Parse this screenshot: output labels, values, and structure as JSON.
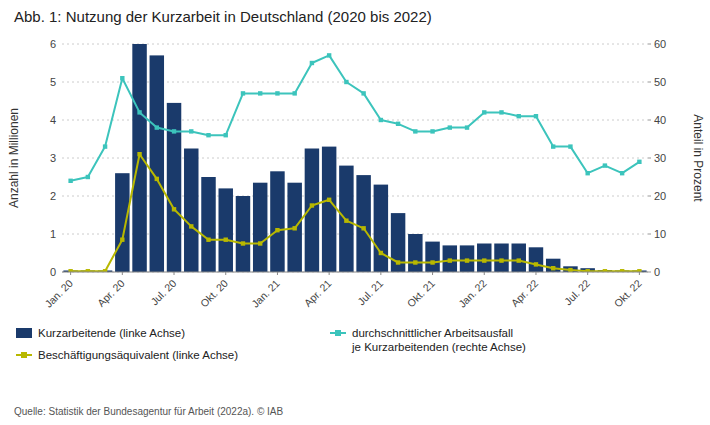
{
  "chart_data": {
    "type": "bar",
    "title": "Abb. 1: Nutzung der Kurzarbeit in Deutschland (2020 bis 2022)",
    "y_label": "Anzahl in Millionen",
    "y2_label": "Anteil in Prozent",
    "annotations": [
      "Quelle: Statistik der Bundesagentur für Arbeit (2022a). © IAB"
    ],
    "categories": [
      "Jan. 20",
      null,
      null,
      "Apr. 20",
      null,
      null,
      "Jul. 20",
      null,
      null,
      "Okt. 20",
      null,
      null,
      "Jan. 21",
      null,
      null,
      "Apr. 21",
      null,
      null,
      "Jul. 21",
      null,
      null,
      "Okt. 21",
      null,
      null,
      "Jan. 22",
      null,
      null,
      "Apr. 22",
      null,
      null,
      "Jul. 22",
      null,
      null,
      "Okt. 22"
    ],
    "series": [
      {
        "name": "Kurzarbeitende (linke Achse)",
        "type": "bar",
        "color": "#1a3a6b",
        "values": [
          0.04,
          0.04,
          0.04,
          2.6,
          6.0,
          5.7,
          4.45,
          3.25,
          2.5,
          2.2,
          2.0,
          2.35,
          2.65,
          2.35,
          3.25,
          3.3,
          2.8,
          2.55,
          2.3,
          1.55,
          1.0,
          0.8,
          0.7,
          0.7,
          0.75,
          0.75,
          0.75,
          0.65,
          0.35,
          0.15,
          0.1,
          0.05,
          0.04,
          0.04
        ]
      },
      {
        "name": "Beschäftigungsäquivalent (linke Achse)",
        "type": "line",
        "color": "#b8b800",
        "marker": "square",
        "values": [
          0.02,
          0.02,
          0.02,
          0.85,
          3.1,
          2.45,
          1.65,
          1.2,
          0.85,
          0.85,
          0.75,
          0.75,
          1.1,
          1.15,
          1.75,
          1.9,
          1.35,
          1.15,
          0.5,
          0.25,
          0.25,
          0.25,
          0.3,
          0.3,
          0.3,
          0.3,
          0.3,
          0.2,
          0.1,
          0.05,
          0.02,
          0.02,
          0.02,
          0.02
        ]
      },
      {
        "name": "durchschnittlicher Arbeitsausfall\nje Kurzarbeitenden (rechte Achse)",
        "type": "line",
        "color": "#3cc4bc",
        "marker": "square",
        "axis": "y2",
        "values": [
          24,
          25,
          33,
          51,
          42,
          38,
          37,
          37,
          36,
          36,
          47,
          47,
          47,
          47,
          55,
          57,
          50,
          47,
          40,
          39,
          37,
          37,
          38,
          38,
          42,
          42,
          41,
          41,
          33,
          33,
          26,
          28,
          26,
          29
        ]
      }
    ],
    "ylim": [
      0,
      6
    ],
    "yticks": [
      0,
      1,
      2,
      3,
      4,
      5,
      6
    ],
    "y2lim": [
      0,
      60
    ],
    "y2ticks": [
      0,
      10,
      20,
      30,
      40,
      50,
      60
    ],
    "grid": true,
    "legend": "bottom"
  }
}
